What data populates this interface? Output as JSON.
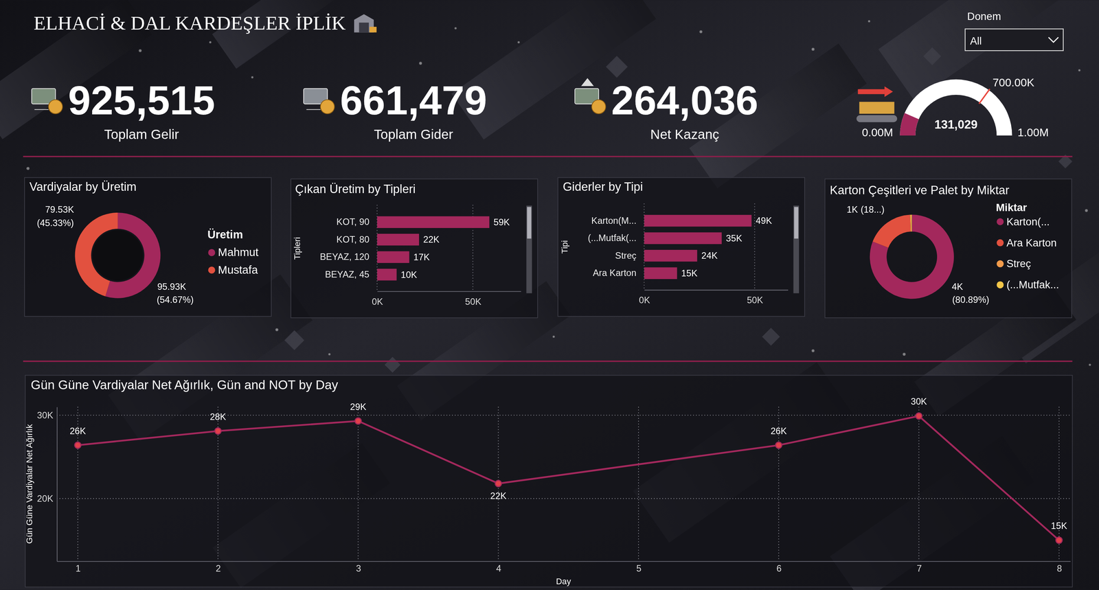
{
  "header": {
    "title": "ELHACİ & DAL KARDEŞLER İPLİK"
  },
  "slicer": {
    "label": "Donem",
    "value": "All"
  },
  "kpis": [
    {
      "value": "925,515",
      "title": "Toplam Gelir"
    },
    {
      "value": "661,479",
      "title": "Toplam Gider"
    },
    {
      "value": "264,036",
      "title": "Net Kazanç"
    }
  ],
  "chart_data": [
    {
      "type": "gauge",
      "value": 131029,
      "value_label": "131,029",
      "min": 0,
      "min_label": "0.00M",
      "max": 1000000,
      "max_label": "1.00M",
      "target": 700000,
      "target_label": "700.00K",
      "color": "#a3285c"
    },
    {
      "type": "donut",
      "title": "Vardiyalar by Üretim",
      "legend_title": "Üretim",
      "legend": "right",
      "categories": [
        "Mahmut",
        "Mustafa"
      ],
      "values": [
        95930,
        79530
      ],
      "value_labels": [
        "95.93K",
        "79.53K"
      ],
      "percent_labels": [
        "(54.67%)",
        "(45.33%)"
      ],
      "colors": [
        "#a3285c",
        "#e2513f"
      ]
    },
    {
      "type": "bar",
      "orientation": "horizontal",
      "title": "Çıkan Üretim by Tipleri",
      "y_label": "Tipleri",
      "categories": [
        "KOT, 90",
        "KOT, 80",
        "BEYAZ, 120",
        "BEYAZ, 45"
      ],
      "values": [
        58600,
        21900,
        16800,
        10200
      ],
      "value_labels": [
        "59K",
        "22K",
        "17K",
        "10K"
      ],
      "xlim": [
        0,
        75000
      ],
      "xticks": [
        {
          "value": 0,
          "label": "0K"
        },
        {
          "value": 50000,
          "label": "50K"
        }
      ],
      "grid": true,
      "color": "#a3285c"
    },
    {
      "type": "bar",
      "orientation": "horizontal",
      "title": "Giderler by Tipi",
      "y_label": "Tipi",
      "categories": [
        "Karton(M...",
        "(...Mutfak(...",
        "Streç",
        "Ara Karton"
      ],
      "values": [
        48600,
        35100,
        24000,
        14900
      ],
      "value_labels": [
        "49K",
        "35K",
        "24K",
        "15K"
      ],
      "xlim": [
        0,
        65000
      ],
      "xticks": [
        {
          "value": 0,
          "label": "0K"
        },
        {
          "value": 50000,
          "label": "50K"
        }
      ],
      "grid": true,
      "color": "#a3285c"
    },
    {
      "type": "donut",
      "title": "Karton Çeşitleri ve Palet by Miktar",
      "legend_title": "Miktar",
      "legend": "right",
      "categories": [
        "Karton(...",
        "Ara Karton",
        "Streç",
        "(...Mutfak..."
      ],
      "values": [
        3961,
        900,
        20,
        16
      ],
      "value_labels": [
        "4K",
        "1K",
        null,
        null
      ],
      "percent_labels": [
        "(80.89%)",
        "(18...)",
        null,
        null
      ],
      "colors": [
        "#a3285c",
        "#e2513f",
        "#f29b4b",
        "#f2c649"
      ]
    },
    {
      "type": "line",
      "title": "Gün Güne Vardiyalar Net Ağırlık, Gün and NOT by Day",
      "x_label": "Day",
      "y_label": "Gün Güne Vardiyalar Net Ağırlık",
      "x": [
        1,
        2,
        3,
        4,
        6,
        7,
        8
      ],
      "values": [
        26400,
        28100,
        29300,
        21800,
        26400,
        29900,
        15000
      ],
      "value_labels": [
        "26K",
        "28K",
        "29K",
        "22K",
        "26K",
        "30K",
        "15K"
      ],
      "xlim": [
        0.85,
        8.08
      ],
      "xticks": [
        1,
        2,
        3,
        4,
        5,
        6,
        7,
        8
      ],
      "ylim": [
        12500,
        31000
      ],
      "yticks": [
        {
          "value": 20000,
          "label": "20K"
        },
        {
          "value": 30000,
          "label": "30K"
        }
      ],
      "grid": true,
      "color": "#a3285c",
      "marker": "circle"
    }
  ]
}
